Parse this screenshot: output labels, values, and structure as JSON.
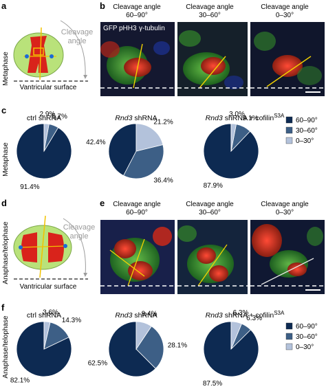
{
  "panels": {
    "a": {
      "letter": "a",
      "side_label": "Metaphase",
      "cleavage_label_line1": "Cleavage",
      "cleavage_label_line2": "angle",
      "surface_label": "Vantricular surface"
    },
    "b": {
      "letter": "b",
      "col1": [
        "Cleavage angle",
        "60–90°"
      ],
      "col2": [
        "Cleavage angle",
        "30–60°"
      ],
      "col3": [
        "Cleavage angle",
        "0–30°"
      ],
      "stain_gfp": "GFP",
      "stain_phh3": "pHH3",
      "stain_tub": "γ-tubulin"
    },
    "c": {
      "letter": "c",
      "side_label": "Metaphase"
    },
    "d": {
      "letter": "d",
      "side_label": "Anaphase/telophase",
      "cleavage_label_line1": "Cleavage",
      "cleavage_label_line2": "angle",
      "surface_label": "Vantricular surface"
    },
    "e": {
      "letter": "e",
      "col1": [
        "Cleavage angle",
        "60–90°"
      ],
      "col2": [
        "Cleavage angle",
        "30–60°"
      ],
      "col3": [
        "Cleavage angle",
        "0–30°"
      ]
    },
    "f": {
      "letter": "f",
      "side_label": "Anaphase/telophase"
    }
  },
  "legend": {
    "entries": [
      "60–90°",
      "30–60°",
      "0–30°"
    ],
    "colors": [
      "#0d2a52",
      "#3d5f86",
      "#b3c2db"
    ]
  },
  "chart_data": [
    {
      "type": "pie",
      "panel": "c",
      "title": "ctrl shRNA",
      "categories": [
        "60–90°",
        "30–60°",
        "0–30°"
      ],
      "values": [
        91.4,
        5.7,
        2.9
      ],
      "labels": [
        "91.4%",
        "5.7%",
        "2.9%"
      ],
      "legend_position": "right"
    },
    {
      "type": "pie",
      "panel": "c",
      "title_italic": "Rnd3",
      "title": " shRNA",
      "categories": [
        "60–90°",
        "30–60°",
        "0–30°"
      ],
      "values": [
        42.4,
        36.4,
        21.2
      ],
      "labels": [
        "42.4%",
        "36.4%",
        "21.2%"
      ]
    },
    {
      "type": "pie",
      "panel": "c",
      "title_italic": "Rnd3",
      "title": " shRNA + cofilin",
      "title_sup": "S3A",
      "categories": [
        "60–90°",
        "30–60°",
        "0–30°"
      ],
      "values": [
        87.9,
        9.1,
        3.0
      ],
      "labels": [
        "87.9%",
        "9.1%",
        "3.0%"
      ]
    },
    {
      "type": "pie",
      "panel": "f",
      "title": "ctrl shRNA",
      "categories": [
        "60–90°",
        "30–60°",
        "0–30°"
      ],
      "values": [
        82.1,
        14.3,
        3.6
      ],
      "labels": [
        "82.1%",
        "14.3%",
        "3.6%"
      ],
      "legend_position": "right"
    },
    {
      "type": "pie",
      "panel": "f",
      "title_italic": "Rnd3",
      "title": " shRNA",
      "categories": [
        "60–90°",
        "30–60°",
        "0–30°"
      ],
      "values": [
        62.5,
        28.1,
        9.4
      ],
      "labels": [
        "62.5%",
        "28.1%",
        "9.4%"
      ]
    },
    {
      "type": "pie",
      "panel": "f",
      "title_italic": "Rnd3",
      "title": " shRNA + cofilin",
      "title_sup": "S3A",
      "categories": [
        "60–90°",
        "30–60°",
        "0–30°"
      ],
      "values": [
        87.5,
        6.3,
        6.3
      ],
      "labels": [
        "87.5%",
        "6.3%",
        "6.3%"
      ]
    }
  ]
}
